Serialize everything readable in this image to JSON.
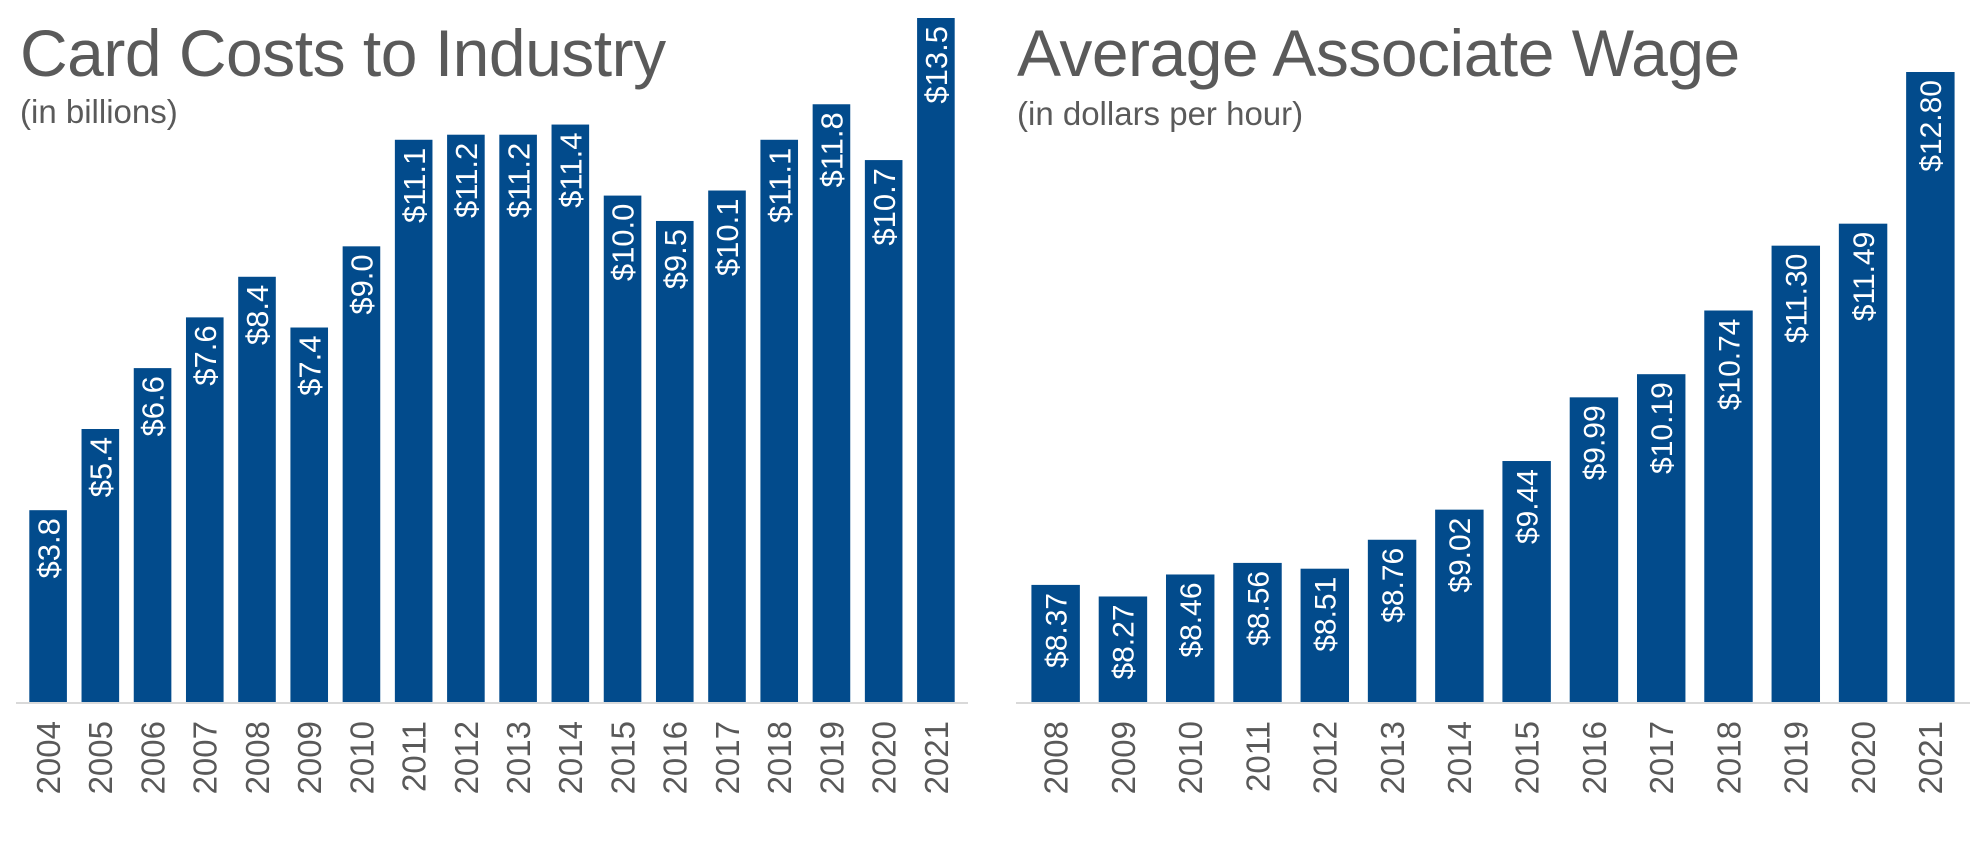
{
  "colors": {
    "bar": "#024b8c",
    "axis": "#d9d9d9",
    "text": "#595959",
    "label": "#ffffff"
  },
  "chart_data": [
    {
      "type": "bar",
      "title": "Card Costs to Industry",
      "subtitle": "(in billions)",
      "xlabel": "",
      "ylabel": "",
      "categories": [
        "2004",
        "2005",
        "2006",
        "2007",
        "2008",
        "2009",
        "2010",
        "2011",
        "2012",
        "2013",
        "2014",
        "2015",
        "2016",
        "2017",
        "2018",
        "2019",
        "2020",
        "2021"
      ],
      "values": [
        3.8,
        5.4,
        6.6,
        7.6,
        8.4,
        7.4,
        9.0,
        11.1,
        11.2,
        11.2,
        11.4,
        10.0,
        9.5,
        10.1,
        11.1,
        11.8,
        10.7,
        13.5
      ],
      "data_labels": [
        "$3.8",
        "$5.4",
        "$6.6",
        "$7.6",
        "$8.4",
        "$7.4",
        "$9.0",
        "$11.1",
        "$11.2",
        "$11.2",
        "$11.4",
        "$10.0",
        "$9.5",
        "$10.1",
        "$11.1",
        "$11.8",
        "$10.7",
        "$13.5"
      ],
      "ylim": [
        0,
        13.5
      ],
      "grid": false,
      "legend": "none"
    },
    {
      "type": "bar",
      "title": "Average Associate Wage",
      "subtitle": "(in dollars per hour)",
      "xlabel": "",
      "ylabel": "",
      "categories": [
        "2008",
        "2009",
        "2010",
        "2011",
        "2012",
        "2013",
        "2014",
        "2015",
        "2016",
        "2017",
        "2018",
        "2019",
        "2020",
        "2021"
      ],
      "values": [
        8.37,
        8.27,
        8.46,
        8.56,
        8.51,
        8.76,
        9.02,
        9.44,
        9.99,
        10.19,
        10.74,
        11.3,
        11.49,
        12.8
      ],
      "data_labels": [
        "$8.37",
        "$8.27",
        "$8.46",
        "$8.56",
        "$8.51",
        "$8.76",
        "$9.02",
        "$9.44",
        "$9.99",
        "$10.19",
        "$10.74",
        "$11.30",
        "$11.49",
        "$12.80"
      ],
      "ylim": [
        7.35,
        12.8
      ],
      "grid": false,
      "legend": "none"
    }
  ]
}
